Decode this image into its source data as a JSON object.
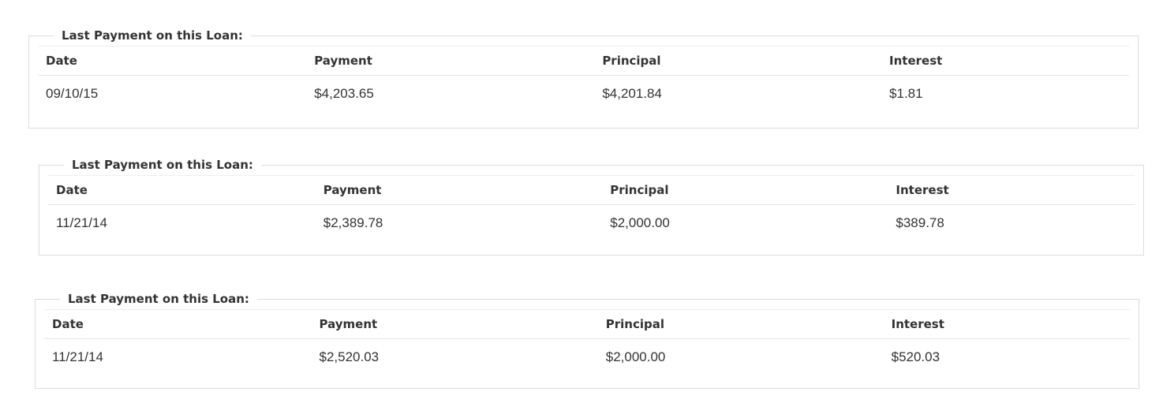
{
  "loans": [
    {
      "legend": "Last Payment on this Loan:",
      "headers": [
        "Date",
        "Payment",
        "Principal",
        "Interest"
      ],
      "row": [
        "09/10/15",
        "$4,203.65",
        "$4,201.84",
        "$1.81"
      ]
    },
    {
      "legend": "Last Payment on this Loan:",
      "headers": [
        "Date",
        "Payment",
        "Principal",
        "Interest"
      ],
      "row": [
        "11/21/14",
        "$2,389.78",
        "$2,000.00",
        "$389.78"
      ]
    },
    {
      "legend": "Last Payment on this Loan:",
      "headers": [
        "Date",
        "Payment",
        "Principal",
        "Interest"
      ],
      "row": [
        "11/21/14",
        "$2,520.03",
        "$2,000.00",
        "$520.03"
      ]
    }
  ]
}
